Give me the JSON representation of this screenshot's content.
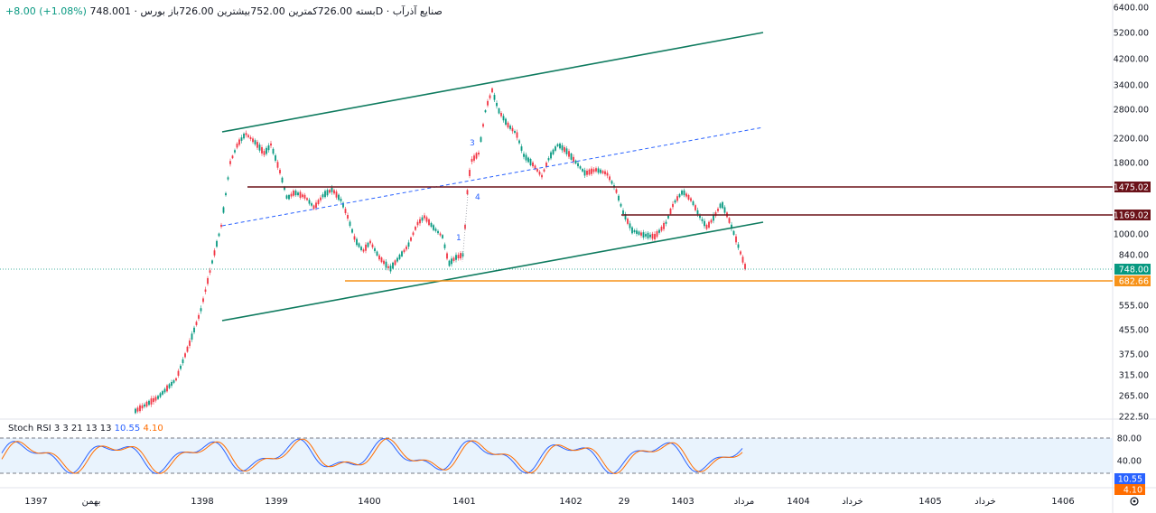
{
  "header": {
    "symbol": "صنایع آذرآب",
    "interval": "1D",
    "exchange": "بورس",
    "open_label": "باز",
    "open": "726.00",
    "high_label": "بیشترین",
    "high": "752.00",
    "low_label": "کمترین",
    "low": "726.00",
    "close_label": "بسته",
    "close": "748.00",
    "change": "+8.00 (+1.08%)"
  },
  "colors": {
    "up": "#089981",
    "down": "#f23645",
    "channel": "#0f7b5f",
    "resistance": "#6b1219",
    "support": "#f7931a",
    "stoch_k": "#2962ff",
    "stoch_d": "#ff6d00",
    "midline": "#2962ff"
  },
  "chart_data": {
    "type": "candlestick",
    "price_axis_ticks": [
      "6400.00",
      "5200.00",
      "4200.00",
      "3400.00",
      "2800.00",
      "2200.00",
      "1800.00",
      "1475.02",
      "1169.02",
      "1000.00",
      "840.00",
      "748.00",
      "682.66",
      "555.00",
      "455.00",
      "375.00",
      "315.00",
      "265.00",
      "222.50"
    ],
    "time_axis_ticks": [
      "1397",
      "بهمن",
      "1398",
      "1399",
      "1400",
      "1401",
      "1402",
      "29",
      "1403",
      "مرداد",
      "1404",
      "خرداد",
      "1405",
      "خرداد",
      "1406"
    ],
    "price_labels": [
      {
        "value": "1475.02",
        "color": "#6b1219"
      },
      {
        "value": "1169.02",
        "color": "#6b1219"
      },
      {
        "value": "748.00",
        "color": "#089981"
      },
      {
        "value": "682.66",
        "color": "#f7931a"
      }
    ],
    "wave_labels": [
      "3",
      "4",
      "1"
    ],
    "resistance_levels": [
      1475.02,
      1169.02
    ],
    "support_level": 682.66,
    "last_price": 748.0,
    "stoch_rsi": {
      "name": "Stoch RSI",
      "params": "3 3 21 13 13",
      "k": "10.55",
      "d": "4.10",
      "axis_ticks": [
        "80.00",
        "40.00"
      ],
      "labels": [
        {
          "value": "10.55",
          "color": "#2962ff"
        },
        {
          "value": "4.10",
          "color": "#ff6d00"
        }
      ]
    }
  }
}
